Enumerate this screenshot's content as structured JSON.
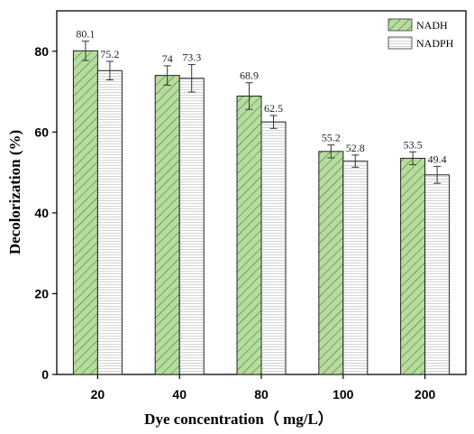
{
  "chart_data": {
    "type": "bar",
    "categories": [
      "20",
      "40",
      "80",
      "100",
      "200"
    ],
    "series": [
      {
        "name": "NADH",
        "values": [
          80.1,
          74,
          68.9,
          55.2,
          53.5
        ],
        "errors": [
          2.4,
          2.4,
          3.3,
          1.6,
          1.6
        ],
        "labels": [
          "80.1",
          "74",
          "68.9",
          "55.2",
          "53.5"
        ],
        "fill": "#b8dc9e",
        "pattern": "diagonal-hatch"
      },
      {
        "name": "NADPH",
        "values": [
          75.2,
          73.3,
          62.5,
          52.8,
          49.4
        ],
        "errors": [
          2.3,
          3.4,
          1.6,
          1.5,
          2.1
        ],
        "labels": [
          "75.2",
          "73.3",
          "62.5",
          "52.8",
          "49.4"
        ],
        "fill": "#ffffff",
        "pattern": "horizontal-lines"
      }
    ],
    "xlabel": "Dye concentration（ mg/L）",
    "ylabel": "Decolorization (%)",
    "ylim": [
      0,
      90
    ],
    "yticks": [
      "0",
      "20",
      "40",
      "60",
      "80"
    ],
    "grid": false,
    "legend_position": "top-right"
  }
}
